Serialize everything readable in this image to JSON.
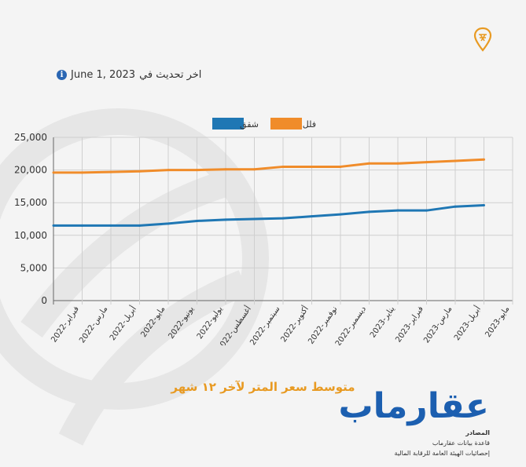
{
  "header": {
    "update_prefix": "اخر تحديث في",
    "update_date": "June 1, 2023",
    "info_icon": "info-icon",
    "logo_icon": "map-pin-icon"
  },
  "chart_data": {
    "type": "line",
    "title": "متوسط سعر المتر لآخر ١٢ شهر",
    "categories": [
      "فبراير-2022",
      "مارس-2022",
      "أبريل-2022",
      "مايو-2022",
      "يونيو-2022",
      "يوليو-2022",
      "أغسطس-2022",
      "سبتمبر-2022",
      "أكتوبر-2022",
      "نوفمبر-2022",
      "ديسمبر-2022",
      "يناير-2023",
      "فبراير-2023",
      "مارس-2023",
      "أبريل-2023",
      "مايو-2023"
    ],
    "series": [
      {
        "name": "فلل",
        "color": "#f08c2a",
        "values": [
          19600,
          19600,
          19700,
          19800,
          20000,
          20000,
          20100,
          20100,
          20500,
          20500,
          20500,
          21000,
          21000,
          21200,
          21400,
          21600
        ]
      },
      {
        "name": "شقق",
        "color": "#1f77b4",
        "values": [
          11500,
          11500,
          11500,
          11500,
          11800,
          12200,
          12400,
          12500,
          12600,
          12900,
          13200,
          13600,
          13800,
          13800,
          14400,
          14600
        ]
      }
    ],
    "ylim": [
      0,
      25000
    ],
    "yticks": [
      "0",
      "5,000",
      "10,000",
      "15,000",
      "20,000",
      "25,000"
    ],
    "grid": true,
    "legend": "top-center"
  },
  "brand": {
    "name": "عقارماب",
    "sources_title": "المصادر",
    "sources": [
      "قاعدة بيانات عقارماب",
      "إحصائيات الهيئة العامة للرقابة المالية"
    ]
  }
}
